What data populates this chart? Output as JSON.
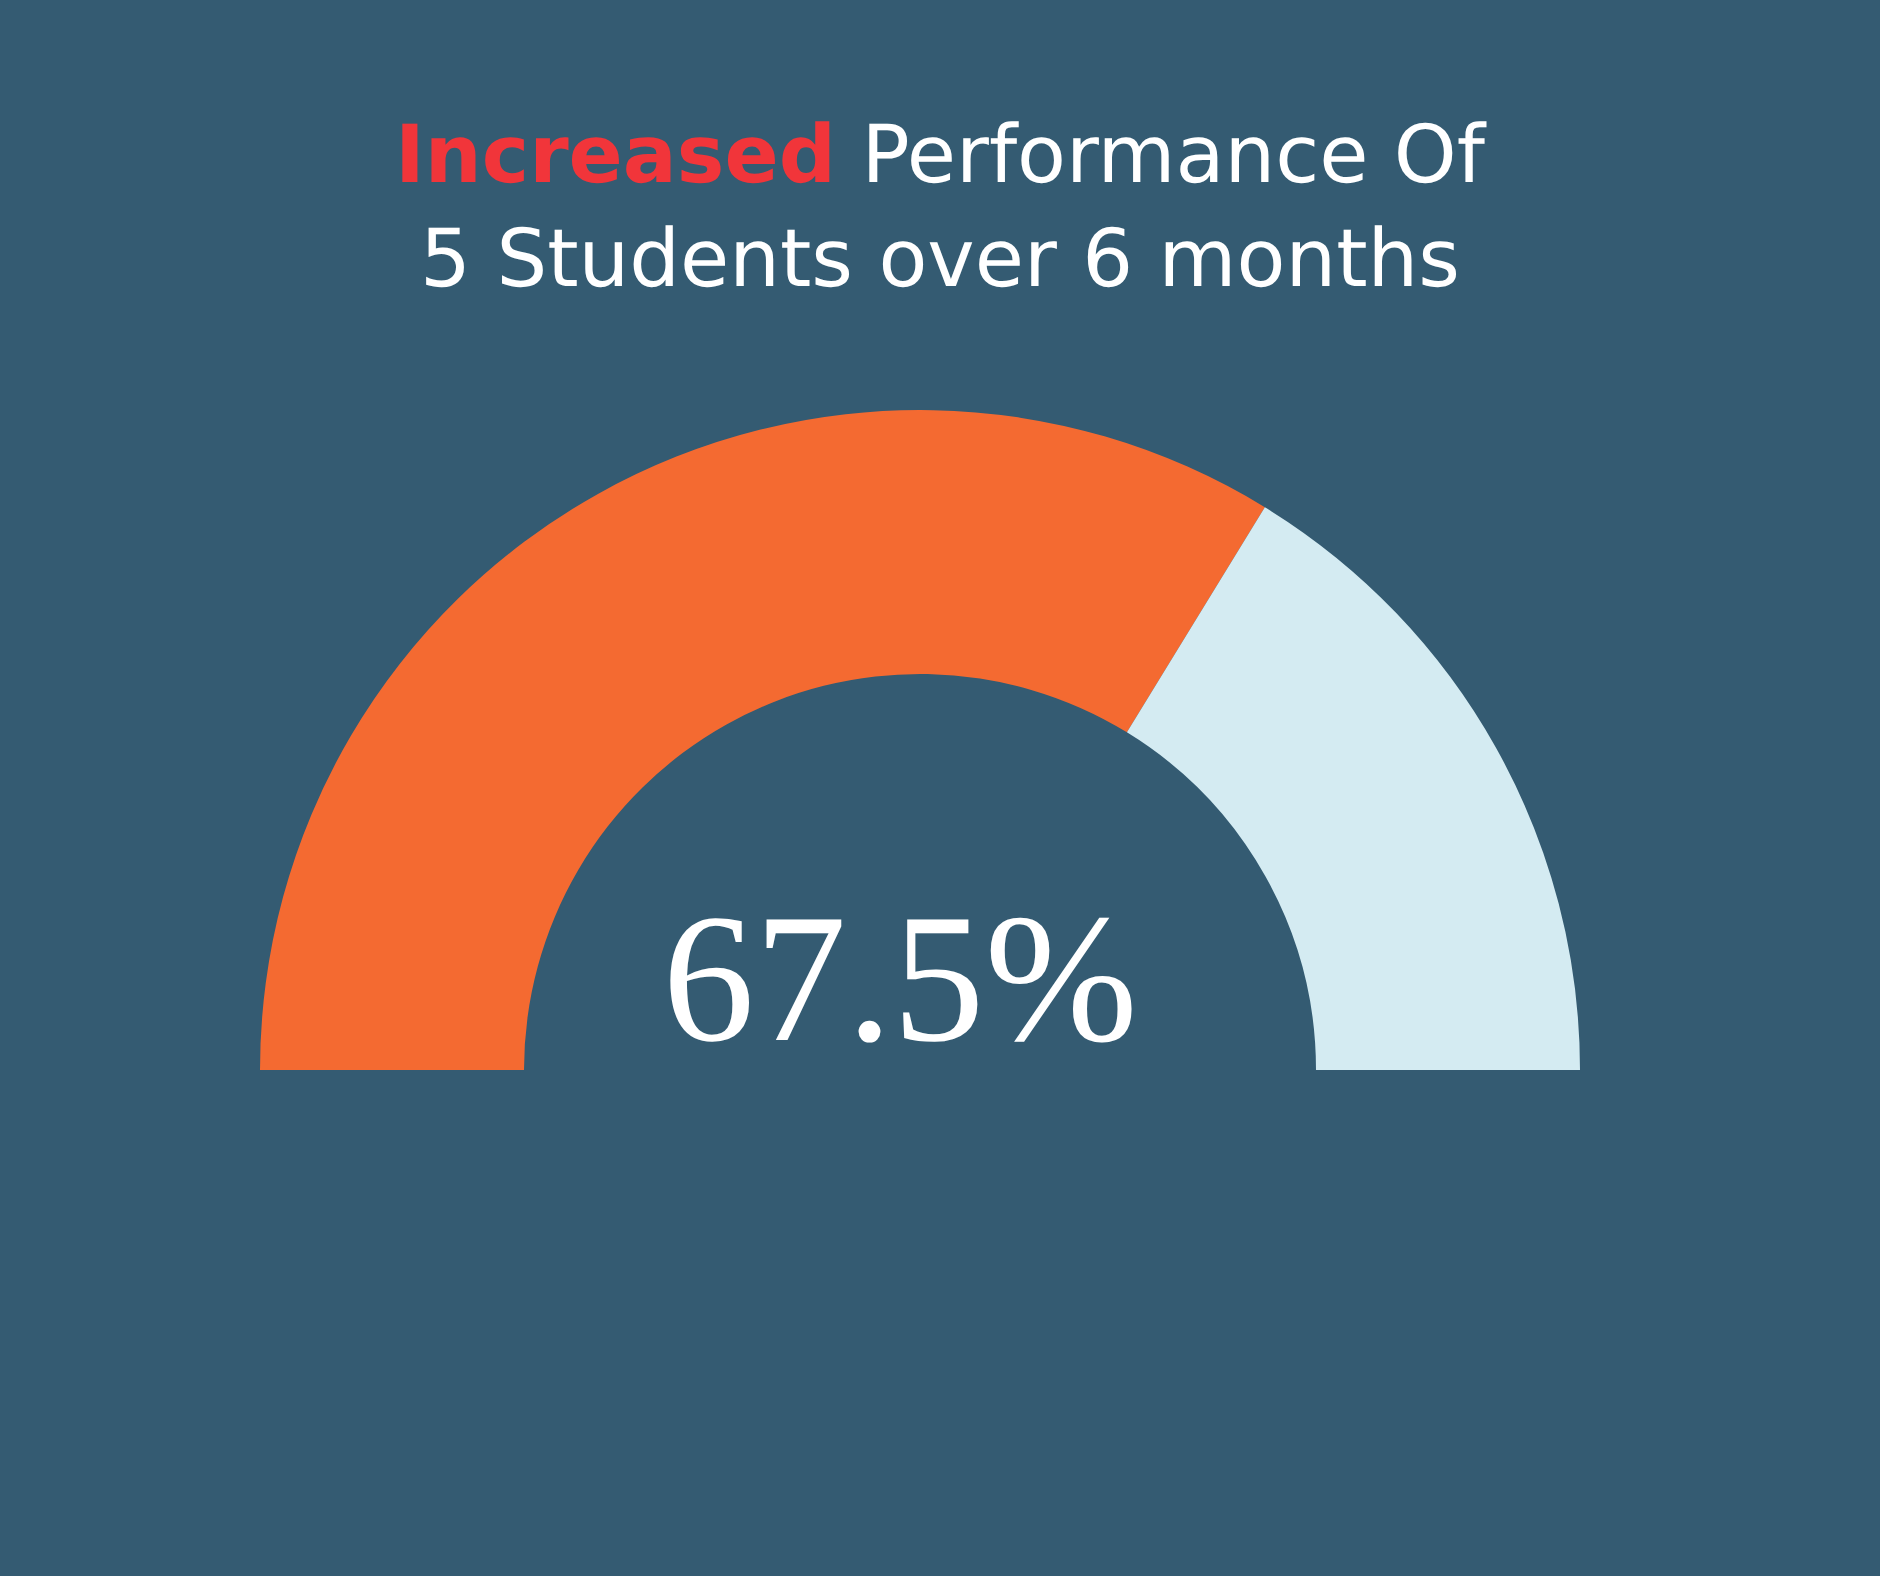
{
  "chart_data": {
    "type": "donut",
    "title": "Increased Performance Of 5 Students over 6 months",
    "categories": [
      null,
      null
    ],
    "values": [
      67.5,
      32.5
    ],
    "colors": [
      "#f46a31",
      "#d4ebf2"
    ],
    "value_labels": [
      "67.5%",
      null
    ],
    "legend": false
  }
}
